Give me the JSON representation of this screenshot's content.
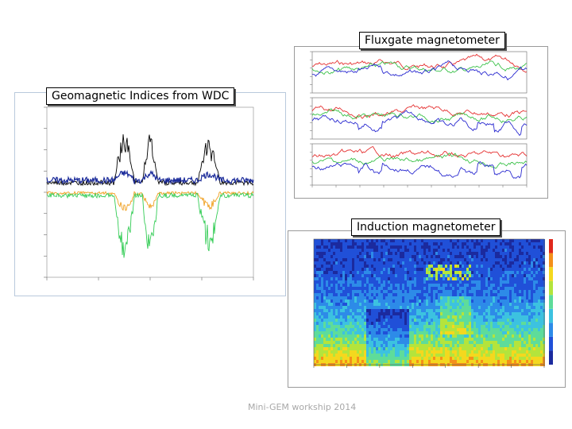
{
  "labels": {
    "fluxgate": "Fluxgate magnetometer",
    "wdc": "Geomagnetic Indices from WDC",
    "induction": "Induction magnetometer"
  },
  "footer": "Mini-GEM workship 2014",
  "colors": {
    "fluxgate_red": "#e53030",
    "fluxgate_green": "#3cc24a",
    "fluxgate_blue": "#2a2ad0",
    "wdc_black": "#000000",
    "wdc_blue": "#1a2a9a",
    "wdc_orange": "#f0a020",
    "wdc_green": "#33cc55"
  }
}
